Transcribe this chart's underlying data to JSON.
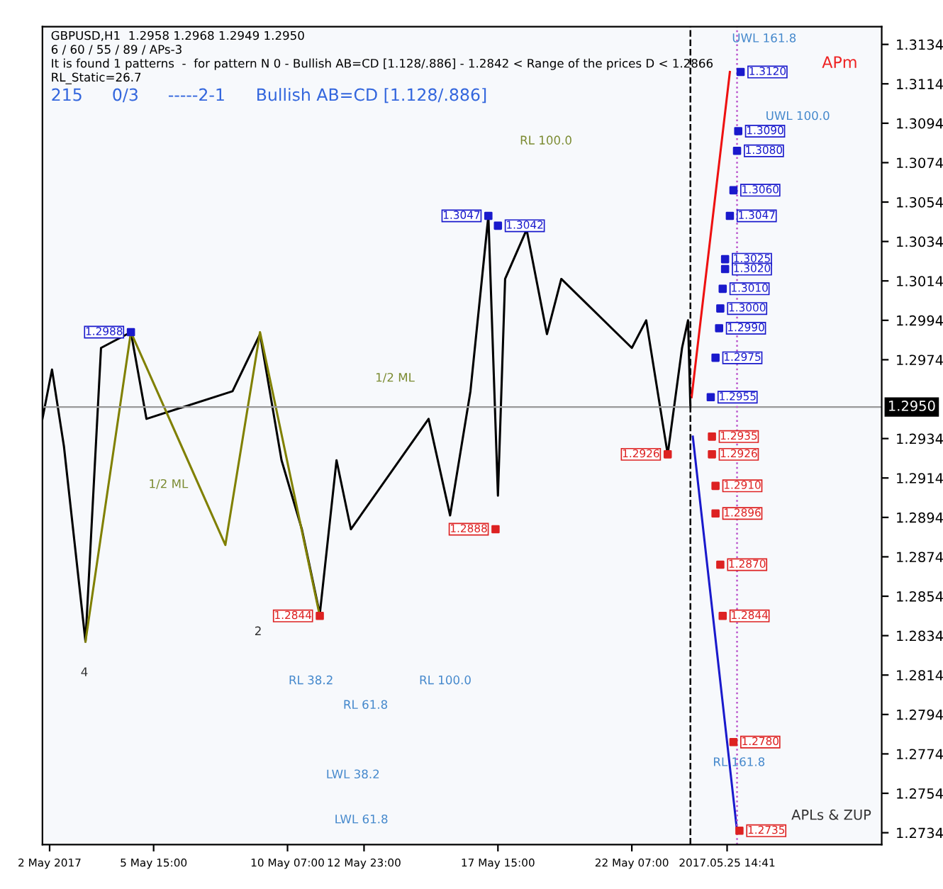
{
  "chart_data": {
    "type": "line",
    "title": "GBPUSD,H1  1.2958 1.2968 1.2949 1.2950",
    "subtitle": "6 / 60 / 55 / 89 / APs-3",
    "annotations": [
      "It is found 1 patterns  -  for pattern N 0 - Bullish AB=CD [1.128/.886] - 1.2842 < Range of the prices D < 1.2866",
      "RL_Static=26.7",
      "215",
      "0/3",
      "-----2-1",
      "Bullish AB=CD [1.128/.886]",
      "APm",
      "APLs & ZUP",
      "4",
      "2",
      "1/2 ML",
      "1/2 ML",
      "RL 100.0",
      "RL 61.8",
      "RL 38.2",
      "LWL 38.2",
      "LWL 61.8",
      "UWL 100.0",
      "UWL 161.8",
      "RL 161.8",
      "RL 100.0"
    ],
    "series": [
      {
        "color": "#000000",
        "x": [
          "2017-05-01T18:00",
          "2017-05-02T02:00",
          "2017-05-02T12:00",
          "2017-05-03T06:00",
          "2017-05-03T19:00",
          "2017-05-04T20:00",
          "2017-05-05T09:00",
          "2017-05-08T09:00",
          "2017-05-09T08:00",
          "2017-05-10T02:00",
          "2017-05-10T19:00",
          "2017-05-11T10:00",
          "2017-05-12T00:00",
          "2017-05-12T12:00",
          "2017-05-15T05:00",
          "2017-05-15T23:00",
          "2017-05-16T16:00",
          "2017-05-17T07:00",
          "2017-05-17T15:00",
          "2017-05-17T21:00",
          "2017-05-18T15:00",
          "2017-05-19T08:00",
          "2017-05-19T20:00",
          "2017-05-22T07:00",
          "2017-05-22T19:00",
          "2017-05-23T13:00",
          "2017-05-24T01:00",
          "2017-05-24T06:00",
          "2017-05-24T08:00"
        ],
        "values": [
          1.2944,
          1.2969,
          1.293,
          1.2831,
          1.298,
          1.2988,
          1.2944,
          1.2958,
          1.2987,
          1.2923,
          1.2888,
          1.2845,
          1.2923,
          1.2888,
          1.2944,
          1.2895,
          1.2958,
          1.3047,
          1.2905,
          1.3015,
          1.304,
          1.2987,
          1.3015,
          1.298,
          1.2994,
          1.2926,
          1.298,
          1.2994,
          1.295
        ]
      },
      {
        "type": "line",
        "color": "#808000",
        "x": [
          "2017-05-03T06:00",
          "2017-05-04T20:00",
          "2017-05-08T03:00",
          "2017-05-09T08:00",
          "2017-05-11T10:00"
        ],
        "values": [
          1.2831,
          1.2988,
          1.288,
          1.2988,
          1.2844
        ]
      },
      {
        "type": "line",
        "color": "#ee1111",
        "x": [
          "2017-05-24T09:00",
          "2017-05-25T17:00"
        ],
        "values": [
          1.2955,
          1.312
        ]
      },
      {
        "type": "line",
        "color": "#1a1acc",
        "x": [
          "2017-05-24T10:00",
          "2017-05-25T23:00"
        ],
        "values": [
          1.2935,
          1.2735
        ]
      },
      {
        "type": "scatter",
        "marker": "square",
        "color": "#1a1acc",
        "x": [
          "2017-05-26T02:00",
          "2017-05-26T00:00",
          "2017-05-25T23:00",
          "2017-05-25T20:00",
          "2017-05-25T17:00",
          "2017-05-25T13:00",
          "2017-05-25T13:00",
          "2017-05-25T11:00",
          "2017-05-25T09:00",
          "2017-05-25T08:00",
          "2017-05-25T05:00",
          "2017-05-25T01:00",
          "2017-05-04T20:00",
          "2017-05-17T07:00",
          "2017-05-17T15:00"
        ],
        "values": [
          1.312,
          1.309,
          1.308,
          1.306,
          1.3047,
          1.3025,
          1.302,
          1.301,
          1.3,
          1.299,
          1.2975,
          1.2955,
          1.2988,
          1.3047,
          1.3042
        ],
        "value_labels": [
          "1.3120",
          "1.3090",
          "1.3080",
          "1.3060",
          "1.3047",
          "1.3025",
          "1.3020",
          "1.3010",
          "1.3000",
          "1.2990",
          "1.2975",
          "1.2955",
          "1.2988",
          "1.3047",
          "1.3042"
        ]
      },
      {
        "type": "scatter",
        "marker": "square",
        "color": "#dd2222",
        "x": [
          "2017-05-25T02:00",
          "2017-05-25T02:00",
          "2017-05-25T05:00",
          "2017-05-25T05:00",
          "2017-05-25T09:00",
          "2017-05-25T11:00",
          "2017-05-25T20:00",
          "2017-05-26T01:00",
          "2017-05-23T13:00",
          "2017-05-17T13:00",
          "2017-05-11T10:00"
        ],
        "values": [
          1.2935,
          1.2926,
          1.291,
          1.2896,
          1.287,
          1.2844,
          1.278,
          1.2735,
          1.2926,
          1.2888,
          1.2844
        ],
        "value_labels": [
          "1.2935",
          "1.2926",
          "1.2910",
          "1.2896",
          "1.2870",
          "1.2844",
          "1.2780",
          "1.2735",
          "1.2926",
          "1.2888",
          "1.2844"
        ]
      }
    ],
    "xlim": [
      "2017-05-01T18:00",
      "2017-05-31T00:00"
    ],
    "ylim": [
      1.2728,
      1.3143
    ],
    "xticks": [
      {
        "value": "2017-05-02T00:00",
        "label": "2 May 2017"
      },
      {
        "value": "2017-05-05T15:00",
        "label": "5 May 15:00"
      },
      {
        "value": "2017-05-10T07:00",
        "label": "10 May 07:00"
      },
      {
        "value": "2017-05-12T23:00",
        "label": "12 May 23:00"
      },
      {
        "value": "2017-05-17T15:00",
        "label": "17 May 15:00"
      },
      {
        "value": "2017-05-22T07:00",
        "label": "22 May 07:00"
      },
      {
        "value": "2017-05-25T14:41",
        "label": "2017.05.25 14:41"
      }
    ],
    "yticks": [
      1.2734,
      1.2754,
      1.2774,
      1.2794,
      1.2814,
      1.2834,
      1.2854,
      1.2874,
      1.2894,
      1.2914,
      1.2934,
      1.2974,
      1.2994,
      1.3014,
      1.3034,
      1.3054,
      1.3074,
      1.3094,
      1.3114,
      1.3134
    ],
    "ref_lines": [
      {
        "axis": "y",
        "value": 1.295,
        "label": "1.2950",
        "color": "#999999",
        "line_style": "solid"
      },
      {
        "axis": "x",
        "value": "2017-05-24T08:00",
        "color": "#000000",
        "line_style": "dashed"
      },
      {
        "axis": "x",
        "value": "2017-05-25T23:00",
        "color": "#bb55cc",
        "line_style": "dotted"
      }
    ],
    "grid": false
  }
}
